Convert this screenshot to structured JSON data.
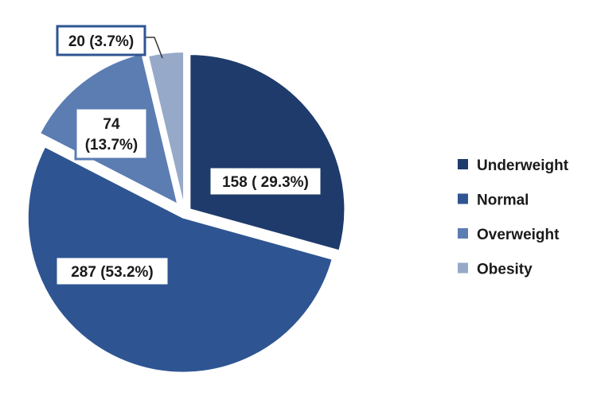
{
  "chart_data": {
    "type": "pie",
    "categories": [
      "Underweight",
      "Normal",
      "Overweight",
      "Obesity"
    ],
    "values": [
      158,
      287,
      74,
      20
    ],
    "data_labels": [
      "158 ( 29.3%)",
      "287 (53.2%)",
      "74\n(13.7%)",
      "20 (3.7%)"
    ],
    "colors": [
      "#1f3b6b",
      "#2e5592",
      "#5b7db2",
      "#96a9c9"
    ],
    "legend_position": "right",
    "exploded": true
  }
}
